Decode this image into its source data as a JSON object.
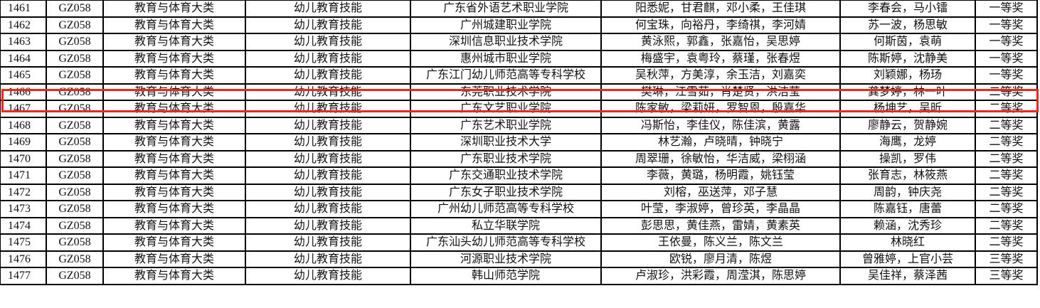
{
  "highlight_color": "#f4231c",
  "highlighted_row": "1466",
  "rows": [
    {
      "no": "1461",
      "code": "GZ058",
      "category": "教育与体育大类",
      "skill": "幼儿教育技能",
      "school": "广东省外语艺术职业学院",
      "students": "阳悉妮，甘君麒，邓小柔，王佳琪",
      "teachers": "李春会，马小镭",
      "award": "一等奖"
    },
    {
      "no": "1462",
      "code": "GZ058",
      "category": "教育与体育大类",
      "skill": "幼儿教育技能",
      "school": "广州城建职业学院",
      "students": "何宝珠，向裕丹，李绮祺，李河婧",
      "teachers": "苏一波，杨思敏",
      "award": "一等奖"
    },
    {
      "no": "1463",
      "code": "GZ058",
      "category": "教育与体育大类",
      "skill": "幼儿教育技能",
      "school": "深圳信息职业技术学院",
      "students": "黄泳熙，郭鑫，张嘉怡，吴思婷",
      "teachers": "何斯茵，袁萌",
      "award": "一等奖"
    },
    {
      "no": "1464",
      "code": "GZ058",
      "category": "教育与体育大类",
      "skill": "幼儿教育技能",
      "school": "惠州城市职业学院",
      "students": "梅盛宇，袁粤玲，蔡瑾，张春煜",
      "teachers": "陈斯婷，沈静美",
      "award": "一等奖"
    },
    {
      "no": "1465",
      "code": "GZ058",
      "category": "教育与体育大类",
      "skill": "幼儿教育技能",
      "school": "广东江门幼儿师范高等专科学校",
      "students": "吴秋萍，方美淳，余玉洁，刘嘉奕",
      "teachers": "刘颖娜，杨玚",
      "award": "一等奖"
    },
    {
      "no": "1466",
      "code": "GZ058",
      "category": "教育与体育大类",
      "skill": "幼儿教育技能",
      "school": "东莞职业技术学院",
      "students": "樊琳，江雪茹，肖楚贤，洪洁莹",
      "teachers": "龚梦婷，林一叶",
      "award": "二等奖"
    },
    {
      "no": "1467",
      "code": "GZ058",
      "category": "教育与体育大类",
      "skill": "幼儿教育技能",
      "school": "广东文艺职业学院",
      "students": "陈家敏，梁莉妍，罗智恩，殷嘉华",
      "teachers": "杨坤艺，吴昕",
      "award": "二等奖"
    },
    {
      "no": "1468",
      "code": "GZ058",
      "category": "教育与体育大类",
      "skill": "幼儿教育技能",
      "school": "广东艺术职业学院",
      "students": "冯斯怡，李佳仪，陈佳滨，黄露",
      "teachers": "廖静云，贺静婉",
      "award": "二等奖"
    },
    {
      "no": "1469",
      "code": "GZ058",
      "category": "教育与体育大类",
      "skill": "幼儿教育技能",
      "school": "深圳职业技术大学",
      "students": "林艺瀚，卢晓晴，钟晓宁",
      "teachers": "海鹰，龙婷",
      "award": "二等奖"
    },
    {
      "no": "1470",
      "code": "GZ058",
      "category": "教育与体育大类",
      "skill": "幼儿教育技能",
      "school": "广东职业技术学院",
      "students": "周翠珊，徐敏怡，华洁威，梁栩涵",
      "teachers": "操凯，罗伟",
      "award": "二等奖"
    },
    {
      "no": "1471",
      "code": "GZ058",
      "category": "教育与体育大类",
      "skill": "幼儿教育技能",
      "school": "广东交通职业技术学院",
      "students": "李薇，黄璐，杨明霞，姚钰莹",
      "teachers": "张育志，林筱燕",
      "award": "二等奖"
    },
    {
      "no": "1472",
      "code": "GZ058",
      "category": "教育与体育大类",
      "skill": "幼儿教育技能",
      "school": "广东女子职业技术学院",
      "students": "刘榕，巫送萍，邓子慧",
      "teachers": "周韵，钟庆尧",
      "award": "二等奖"
    },
    {
      "no": "1473",
      "code": "GZ058",
      "category": "教育与体育大类",
      "skill": "幼儿教育技能",
      "school": "广州幼儿师范高等专科学校",
      "students": "叶莹，李淑婷，曾珍英，李晶晶",
      "teachers": "陈嘉钰，唐蕾",
      "award": "二等奖"
    },
    {
      "no": "1474",
      "code": "GZ058",
      "category": "教育与体育大类",
      "skill": "幼儿教育技能",
      "school": "私立华联学院",
      "students": "彭思思，黄佳燕，雷婧，黄素英",
      "teachers": "赖涵，沈秀珍",
      "award": "二等奖"
    },
    {
      "no": "1475",
      "code": "GZ058",
      "category": "教育与体育大类",
      "skill": "幼儿教育技能",
      "school": "广东汕头幼儿师范高等专科学校",
      "students": "王依曼，陈义兰，陈文兰",
      "teachers": "林晓红",
      "award": "二等奖"
    },
    {
      "no": "1476",
      "code": "GZ058",
      "category": "教育与体育大类",
      "skill": "幼儿教育技能",
      "school": "河源职业技术学院",
      "students": "欧锐，廖月清，陈煜",
      "teachers": "曾雅婷，上官小芸",
      "award": "三等奖"
    },
    {
      "no": "1477",
      "code": "GZ058",
      "category": "教育与体育大类",
      "skill": "幼儿教育技能",
      "school": "韩山师范学院",
      "students": "卢淑珍，洪彩霞，周滢淇，陈思婷",
      "teachers": "吴佳祥，蔡泽茜",
      "award": "三等奖"
    }
  ]
}
